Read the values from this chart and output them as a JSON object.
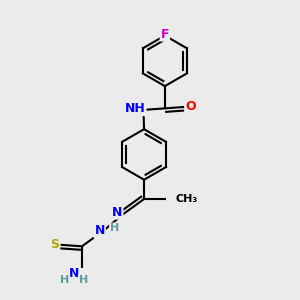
{
  "bg_color": "#ebebeb",
  "line_color": "#000000",
  "bond_width": 1.5,
  "atom_colors": {
    "F": "#cc00cc",
    "O": "#ff0000",
    "N": "#0000ee",
    "S": "#aaaa00",
    "H": "#5f9ea0",
    "C": "#000000"
  },
  "font_size": 9,
  "r1cx": 5.5,
  "r1cy": 8.0,
  "r1r": 0.85,
  "r2cx": 4.8,
  "r2cy": 4.85,
  "r2r": 0.85
}
